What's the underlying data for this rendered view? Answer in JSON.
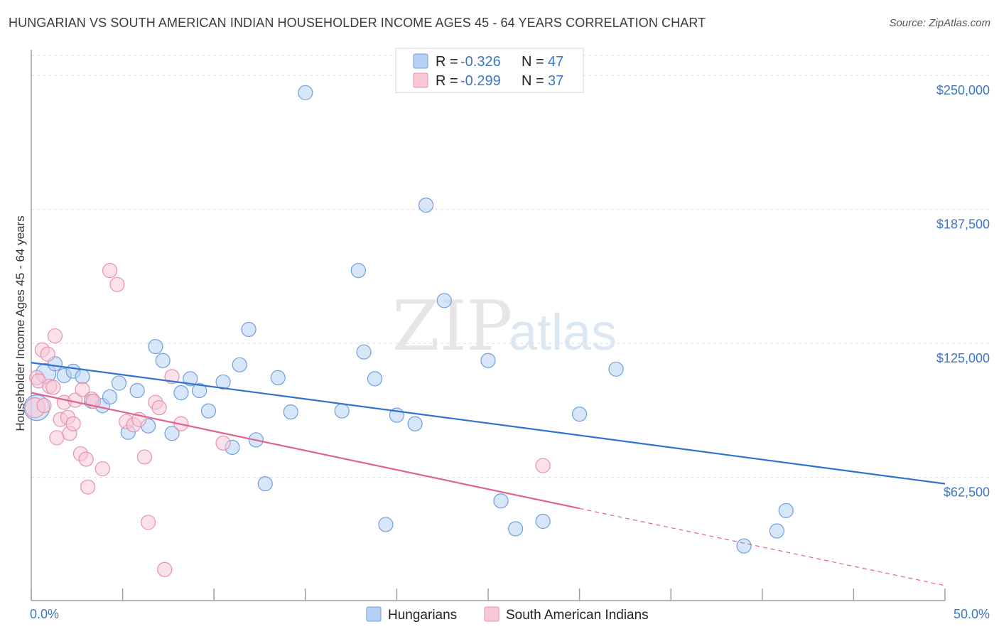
{
  "header": {
    "title": "HUNGARIAN VS SOUTH AMERICAN INDIAN HOUSEHOLDER INCOME AGES 45 - 64 YEARS CORRELATION CHART",
    "source": "Source: ZipAtlas.com"
  },
  "watermark": {
    "zip": "ZIP",
    "atlas": "atlas"
  },
  "legend": {
    "rows": [
      {
        "r_label": "R = ",
        "r_value": "-0.326",
        "n_label": "N = ",
        "n_value": "47"
      },
      {
        "r_label": "R = ",
        "r_value": "-0.299",
        "n_label": "N = ",
        "n_value": "37"
      }
    ]
  },
  "bottom_legend": [
    "Hungarians",
    "South American Indians"
  ],
  "colors": {
    "blue_fill": "#b7d1f4",
    "blue_stroke": "#6f9fdc",
    "blue_line": "#2f72cf",
    "pink_fill": "#f8c8d8",
    "pink_stroke": "#e88fae",
    "pink_line": "#e0628e",
    "grid": "#d9dde3",
    "axis_text": "#3d76c4"
  },
  "chart_data": {
    "type": "scatter",
    "title": "HUNGARIAN VS SOUTH AMERICAN INDIAN HOUSEHOLDER INCOME AGES 45 - 64 YEARS CORRELATION CHART",
    "xlabel": "",
    "ylabel": "Householder Income Ages 45 - 64 years",
    "xlim": [
      0,
      50
    ],
    "ylim": [
      5000,
      262000
    ],
    "x_tick_labels": [
      "0.0%",
      "50.0%"
    ],
    "y_ticks": [
      62500,
      125000,
      187500,
      250000
    ],
    "y_tick_labels": [
      "$62,500",
      "$125,000",
      "$187,500",
      "$250,000"
    ],
    "grid": true,
    "series": [
      {
        "name": "Hungarians",
        "r": -0.326,
        "n": 47,
        "trend": {
          "x0": 0,
          "y0": 116000,
          "x1": 50,
          "y1": 59500,
          "dashed_from": null
        },
        "points": [
          [
            0.3,
            95000,
            18
          ],
          [
            0.8,
            111000,
            14
          ],
          [
            1.3,
            115500,
            10
          ],
          [
            1.8,
            110000,
            10
          ],
          [
            2.3,
            112000,
            10
          ],
          [
            2.8,
            109500,
            10
          ],
          [
            3.3,
            98000,
            10
          ],
          [
            3.9,
            96000,
            10
          ],
          [
            4.3,
            100000,
            10
          ],
          [
            4.8,
            106500,
            10
          ],
          [
            5.3,
            83500,
            10
          ],
          [
            5.8,
            103000,
            10
          ],
          [
            6.4,
            86500,
            10
          ],
          [
            6.8,
            123500,
            10
          ],
          [
            7.2,
            117000,
            10
          ],
          [
            7.7,
            83000,
            10
          ],
          [
            8.2,
            102000,
            10
          ],
          [
            8.7,
            108500,
            10
          ],
          [
            9.2,
            103000,
            10
          ],
          [
            9.7,
            93500,
            10
          ],
          [
            10.5,
            107000,
            10
          ],
          [
            11.0,
            76500,
            10
          ],
          [
            11.4,
            115000,
            10
          ],
          [
            11.9,
            131500,
            10
          ],
          [
            12.3,
            80000,
            10
          ],
          [
            12.8,
            59500,
            10
          ],
          [
            13.5,
            109000,
            10
          ],
          [
            14.2,
            93000,
            10
          ],
          [
            15.0,
            242000,
            10
          ],
          [
            17.0,
            93500,
            10
          ],
          [
            17.9,
            159000,
            10
          ],
          [
            18.2,
            121000,
            10
          ],
          [
            18.8,
            108500,
            10
          ],
          [
            19.4,
            40500,
            10
          ],
          [
            20.0,
            91500,
            10
          ],
          [
            21.0,
            87500,
            10
          ],
          [
            21.6,
            189500,
            10
          ],
          [
            22.6,
            145000,
            10
          ],
          [
            25.0,
            117000,
            10
          ],
          [
            25.7,
            51500,
            10
          ],
          [
            26.5,
            38500,
            10
          ],
          [
            28.0,
            42000,
            10
          ],
          [
            30.0,
            92000,
            10
          ],
          [
            32.0,
            113000,
            10
          ],
          [
            39.0,
            30500,
            10
          ],
          [
            40.8,
            37500,
            10
          ],
          [
            41.3,
            47000,
            10
          ]
        ]
      },
      {
        "name": "South American Indians",
        "r": -0.299,
        "n": 37,
        "trend": {
          "x0": 0,
          "y0": 102000,
          "x1": 50,
          "y1": 12000,
          "dashed_from": 30
        },
        "points": [
          [
            0.2,
            95000,
            14
          ],
          [
            0.3,
            109000,
            10
          ],
          [
            0.4,
            107500,
            10
          ],
          [
            0.6,
            122000,
            10
          ],
          [
            0.7,
            96000,
            10
          ],
          [
            0.9,
            120000,
            10
          ],
          [
            1.0,
            105000,
            10
          ],
          [
            1.2,
            104500,
            10
          ],
          [
            1.3,
            128500,
            10
          ],
          [
            1.4,
            81000,
            10
          ],
          [
            1.6,
            89500,
            10
          ],
          [
            1.8,
            97500,
            10
          ],
          [
            2.0,
            90500,
            10
          ],
          [
            2.1,
            83000,
            10
          ],
          [
            2.3,
            87500,
            10
          ],
          [
            2.4,
            98500,
            10
          ],
          [
            2.7,
            73500,
            10
          ],
          [
            2.8,
            103500,
            10
          ],
          [
            3.0,
            71000,
            10
          ],
          [
            3.1,
            58000,
            10
          ],
          [
            3.3,
            99000,
            10
          ],
          [
            3.4,
            98000,
            10
          ],
          [
            3.9,
            66500,
            10
          ],
          [
            4.3,
            159000,
            10
          ],
          [
            4.7,
            152500,
            10
          ],
          [
            5.2,
            88500,
            10
          ],
          [
            5.6,
            87000,
            10
          ],
          [
            5.9,
            89500,
            10
          ],
          [
            6.2,
            72000,
            10
          ],
          [
            6.4,
            41500,
            10
          ],
          [
            6.8,
            97500,
            10
          ],
          [
            7.0,
            95000,
            10
          ],
          [
            7.3,
            19500,
            10
          ],
          [
            7.7,
            109500,
            10
          ],
          [
            8.2,
            87500,
            10
          ],
          [
            10.5,
            78500,
            10
          ],
          [
            28.0,
            68000,
            10
          ]
        ]
      }
    ]
  }
}
